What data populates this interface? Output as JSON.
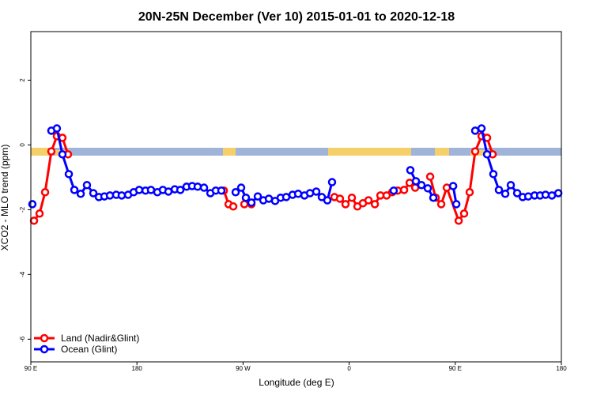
{
  "chart_data": {
    "type": "line",
    "title": "20N-25N December (Ver 10)   2015-01-01 to 2020-12-18",
    "x_label": "Longitude (deg E)",
    "y_label": "XCO2 - MLO trend (ppm)",
    "xlim": [
      90,
      540
    ],
    "ylim": [
      -6.7,
      3.5
    ],
    "xticks": [
      {
        "value": 90,
        "label": "90 E"
      },
      {
        "value": 180,
        "label": "180"
      },
      {
        "value": 270,
        "label": "90 W"
      },
      {
        "value": 360,
        "label": "0"
      },
      {
        "value": 450,
        "label": "90 E"
      },
      {
        "value": 540,
        "label": "180"
      }
    ],
    "yticks": [
      -6,
      -4,
      -2,
      0,
      2
    ],
    "legend": "bottom-left",
    "series": [
      {
        "name": "Land (Nadir&Glint)",
        "color": "#ff0000",
        "x": [
          92.7,
          97.4,
          102.1,
          107.4,
          112.1,
          116.8,
          121.5,
          null,
          253.7,
          257.7,
          261.7,
          null,
          271.1,
          277.1,
          null,
          347.5,
          352.2,
          356.9,
          362.3,
          367.0,
          371.7,
          376.4,
          381.8,
          386.5,
          391.8,
          396.5,
          401.2,
          406.6,
          411.3,
          416.0,
          null,
          428.7,
          433.4,
          438.1,
          442.8,
          452.9,
          457.5,
          462.2,
          466.9,
          472.3,
          477.0,
          481.7
        ],
        "values": [
          -2.34,
          -2.12,
          -1.46,
          -0.2,
          0.27,
          0.22,
          -0.29,
          null,
          -1.41,
          -1.83,
          -1.9,
          null,
          -1.83,
          -1.83,
          null,
          -1.61,
          -1.66,
          -1.83,
          -1.63,
          -1.9,
          -1.8,
          -1.71,
          -1.83,
          -1.56,
          -1.56,
          -1.46,
          -1.41,
          -1.39,
          -1.17,
          -1.32,
          null,
          -0.98,
          -1.63,
          -1.83,
          -1.32,
          -2.34,
          -2.12,
          -1.46,
          -0.2,
          0.27,
          0.22,
          -0.29
        ]
      },
      {
        "name": "Ocean (Glint)",
        "color": "#0000ff",
        "x": [
          91.3,
          null,
          107.4,
          112.1,
          116.8,
          122.2,
          126.9,
          132.3,
          137.6,
          143.0,
          147.7,
          152.4,
          157.1,
          162.4,
          167.1,
          172.5,
          177.2,
          181.9,
          187.3,
          191.9,
          197.3,
          202.0,
          206.7,
          212.1,
          216.8,
          222.1,
          226.8,
          231.5,
          236.9,
          242.3,
          246.9,
          251.6,
          null,
          263.7,
          268.4,
          272.4,
          277.1,
          282.5,
          287.2,
          291.9,
          297.2,
          301.9,
          306.6,
          312.0,
          316.7,
          322.1,
          326.8,
          332.1,
          336.8,
          341.5,
          345.5,
          null,
          397.8,
          null,
          411.9,
          416.6,
          421.3,
          426.7,
          431.4,
          null,
          448.2,
          450.9,
          null,
          466.9,
          472.3,
          477.0,
          482.3,
          487.0,
          492.4,
          497.1,
          502.5,
          507.2,
          511.9,
          517.3,
          522.0,
          526.6,
          532.0,
          537.4
        ],
        "values": [
          -1.83,
          null,
          0.44,
          0.51,
          -0.29,
          -0.9,
          -1.39,
          -1.51,
          -1.24,
          -1.49,
          -1.61,
          -1.59,
          -1.56,
          -1.54,
          -1.56,
          -1.54,
          -1.46,
          -1.39,
          -1.41,
          -1.39,
          -1.46,
          -1.39,
          -1.44,
          -1.37,
          -1.39,
          -1.29,
          -1.27,
          -1.29,
          -1.32,
          -1.49,
          -1.41,
          -1.41,
          null,
          -1.46,
          -1.32,
          -1.63,
          -1.78,
          -1.59,
          -1.71,
          -1.66,
          -1.73,
          -1.63,
          -1.61,
          -1.54,
          -1.51,
          -1.56,
          -1.49,
          -1.44,
          -1.61,
          -1.71,
          -1.15,
          null,
          -1.41,
          null,
          -0.78,
          -1.12,
          -1.24,
          -1.34,
          -1.63,
          null,
          -1.27,
          -1.83,
          null,
          0.44,
          0.51,
          -0.29,
          -0.9,
          -1.39,
          -1.51,
          -1.24,
          -1.49,
          -1.61,
          -1.59,
          -1.56,
          -1.56,
          -1.54,
          -1.56,
          -1.49
        ]
      }
    ]
  }
}
